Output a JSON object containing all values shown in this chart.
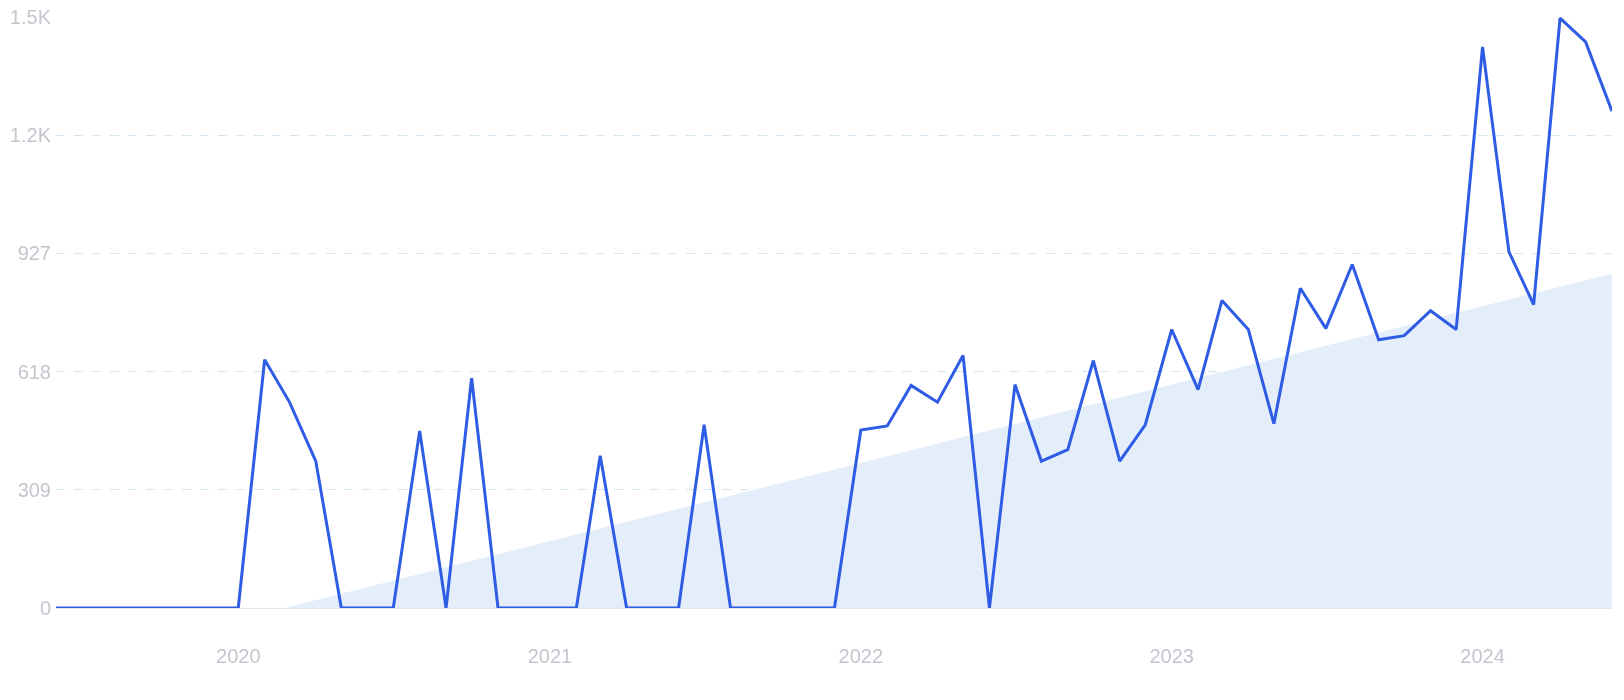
{
  "chart_data": {
    "type": "line",
    "x": [
      "2019-06",
      "2019-07",
      "2019-08",
      "2019-09",
      "2019-10",
      "2019-11",
      "2019-12",
      "2020-01",
      "2020-02",
      "2020-03",
      "2020-04",
      "2020-05",
      "2020-06",
      "2020-07",
      "2020-08",
      "2020-09",
      "2020-10",
      "2020-11",
      "2020-12",
      "2021-01",
      "2021-02",
      "2021-03",
      "2021-04",
      "2021-05",
      "2021-06",
      "2021-07",
      "2021-08",
      "2021-09",
      "2021-10",
      "2021-11",
      "2021-12",
      "2022-01",
      "2022-02",
      "2022-03",
      "2022-04",
      "2022-05",
      "2022-06",
      "2022-07",
      "2022-08",
      "2022-09",
      "2022-10",
      "2022-11",
      "2022-12",
      "2023-01",
      "2023-02",
      "2023-03",
      "2023-04",
      "2023-05",
      "2023-06",
      "2023-07",
      "2023-08",
      "2023-09",
      "2023-10",
      "2023-11",
      "2023-12",
      "2024-01",
      "2024-02",
      "2024-03",
      "2024-04",
      "2024-05",
      "2024-06"
    ],
    "series": [
      {
        "type": "area",
        "color": "#e4eefb",
        "x": [
          "2020-02-24",
          "2024-06"
        ],
        "values": [
          0,
          874
        ]
      },
      {
        "color": "#2f5ce5",
        "values": [
          0,
          0,
          0,
          0,
          0,
          0,
          0,
          0,
          649,
          539,
          384,
          0,
          0,
          0,
          463,
          0,
          601,
          0,
          0,
          0,
          0,
          398,
          0,
          0,
          0,
          479,
          0,
          0,
          0,
          0,
          0,
          465,
          476,
          582,
          538,
          660,
          0,
          584,
          384,
          414,
          647,
          384,
          479,
          728,
          571,
          804,
          728,
          482,
          836,
          731,
          898,
          701,
          712,
          777,
          728,
          1467,
          931,
          793,
          1542,
          1480,
          1299
        ]
      }
    ],
    "xlim": [
      "2019-06",
      "2024-06"
    ],
    "xticks": [
      {
        "value": "2020-01",
        "label": "2020"
      },
      {
        "value": "2021-01",
        "label": "2021"
      },
      {
        "value": "2022-01",
        "label": "2022"
      },
      {
        "value": "2023-01",
        "label": "2023"
      },
      {
        "value": "2024-01",
        "label": "2024"
      }
    ],
    "ylim": [
      0,
      1545
    ],
    "yticks": [
      0,
      309,
      618,
      927,
      {
        "value": 1236,
        "label": "1.2K"
      },
      {
        "value": 1545,
        "label": "1.5K"
      }
    ],
    "grid": "y",
    "marker": "none",
    "line_style": "solid"
  }
}
